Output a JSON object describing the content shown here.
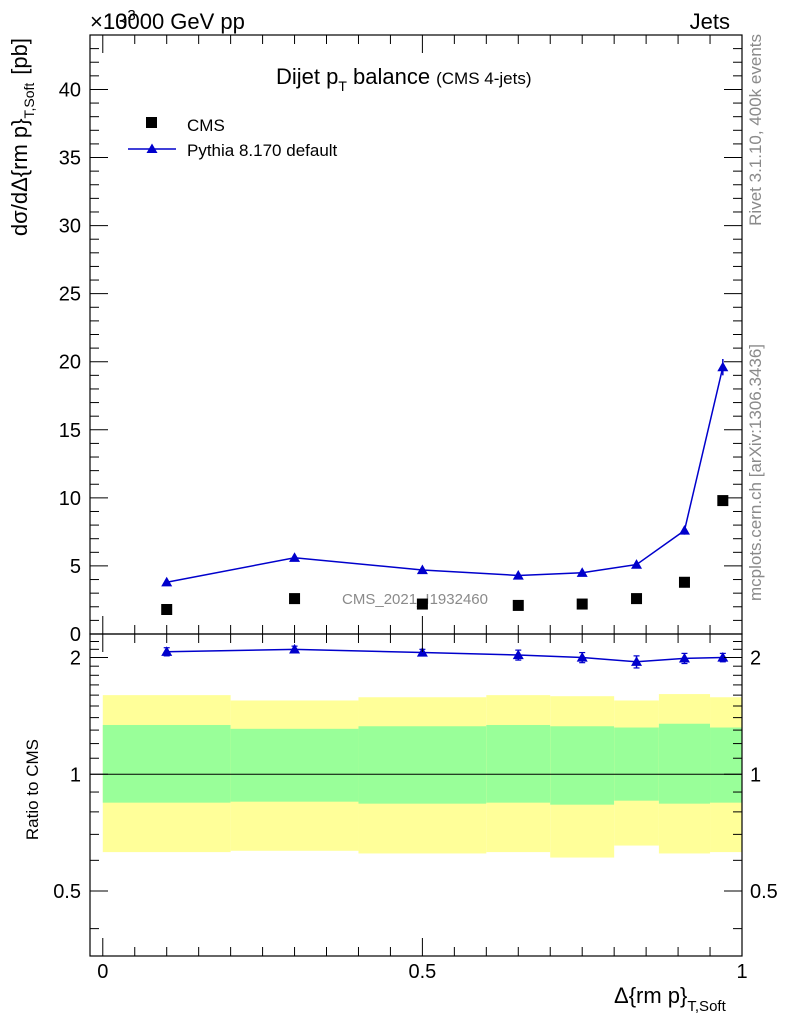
{
  "header": {
    "energy_label": "13000 GeV pp",
    "exponent_label": "×10",
    "exponent_power": "3",
    "category_label": "Jets"
  },
  "plot_title": {
    "main": "Dijet p",
    "sub": "T",
    "main_after": " balance",
    "suffix": "(CMS 4-jets)"
  },
  "side_labels": {
    "rivet": "Rivet 3.1.10,  400k events",
    "mcplots": "mcplots.cern.ch [arXiv:1306.3436]"
  },
  "watermark": "CMS_2021_I1932460",
  "legend": {
    "cms": "CMS",
    "pythia": "Pythia 8.170 default"
  },
  "chart_data": [
    {
      "type": "scatter",
      "panel": "main",
      "ylabel": "dσ/dΔ{rm p}",
      "ylabel_sub": "T,Soft",
      "ylabel_unit": "[pb]",
      "xlim": [
        -0.02,
        1.0
      ],
      "ylim": [
        0,
        44
      ],
      "y_scale_factor": "×10^3",
      "yticks": [
        0,
        5,
        10,
        15,
        20,
        25,
        30,
        35,
        40
      ],
      "ytick_labels": [
        "0",
        "5",
        "10",
        "15",
        "20",
        "25",
        "30",
        "35",
        "40"
      ],
      "legend_position": "top-left",
      "series": [
        {
          "name": "CMS",
          "marker": "square",
          "color": "#000000",
          "x": [
            0.1,
            0.3,
            0.5,
            0.65,
            0.75,
            0.835,
            0.91,
            0.97
          ],
          "y": [
            1.8,
            2.6,
            2.2,
            2.1,
            2.2,
            2.6,
            3.8,
            9.8
          ]
        },
        {
          "name": "Pythia 8.170 default",
          "marker": "triangle",
          "color": "#0000cc",
          "x": [
            0.1,
            0.3,
            0.5,
            0.65,
            0.75,
            0.835,
            0.91,
            0.97
          ],
          "y": [
            3.8,
            5.6,
            4.7,
            4.3,
            4.5,
            5.1,
            7.6,
            19.6
          ],
          "yerr": [
            0.15,
            0.2,
            0.15,
            0.15,
            0.15,
            0.2,
            0.3,
            0.6
          ]
        }
      ]
    },
    {
      "type": "line",
      "panel": "ratio",
      "ylabel": "Ratio to CMS",
      "xlabel": "Δ{rm p}",
      "xlabel_sub": "T,Soft",
      "xlim": [
        -0.02,
        1.0
      ],
      "ylim": [
        0.34,
        2.3
      ],
      "yticks": [
        0.5,
        1,
        2
      ],
      "ytick_labels": [
        "0.5",
        "1",
        "2"
      ],
      "xticks": [
        0,
        0.5,
        1
      ],
      "xtick_labels": [
        "0",
        "0.5",
        "1"
      ],
      "reference_line": 1,
      "bands": {
        "bin_edges": [
          0.0,
          0.2,
          0.4,
          0.6,
          0.7,
          0.8,
          0.87,
          0.95,
          1.0
        ],
        "outer_color": "#ffff99",
        "outer_low": [
          0.63,
          0.635,
          0.625,
          0.63,
          0.61,
          0.655,
          0.625,
          0.63
        ],
        "outer_high": [
          1.6,
          1.55,
          1.58,
          1.6,
          1.59,
          1.55,
          1.61,
          1.58
        ],
        "inner_color": "#99ff99",
        "inner_low": [
          0.845,
          0.85,
          0.84,
          0.845,
          0.835,
          0.855,
          0.84,
          0.845
        ],
        "inner_high": [
          1.34,
          1.31,
          1.33,
          1.34,
          1.33,
          1.32,
          1.35,
          1.32
        ]
      },
      "series": [
        {
          "name": "Pythia 8.170 default",
          "marker": "triangle",
          "color": "#0000cc",
          "x": [
            0.1,
            0.3,
            0.5,
            0.65,
            0.75,
            0.835,
            0.91,
            0.97
          ],
          "y": [
            2.07,
            2.1,
            2.06,
            2.03,
            2.0,
            1.95,
            1.99,
            2.0
          ],
          "yerr": [
            0.05,
            0.04,
            0.04,
            0.06,
            0.06,
            0.07,
            0.06,
            0.05
          ]
        }
      ]
    }
  ]
}
